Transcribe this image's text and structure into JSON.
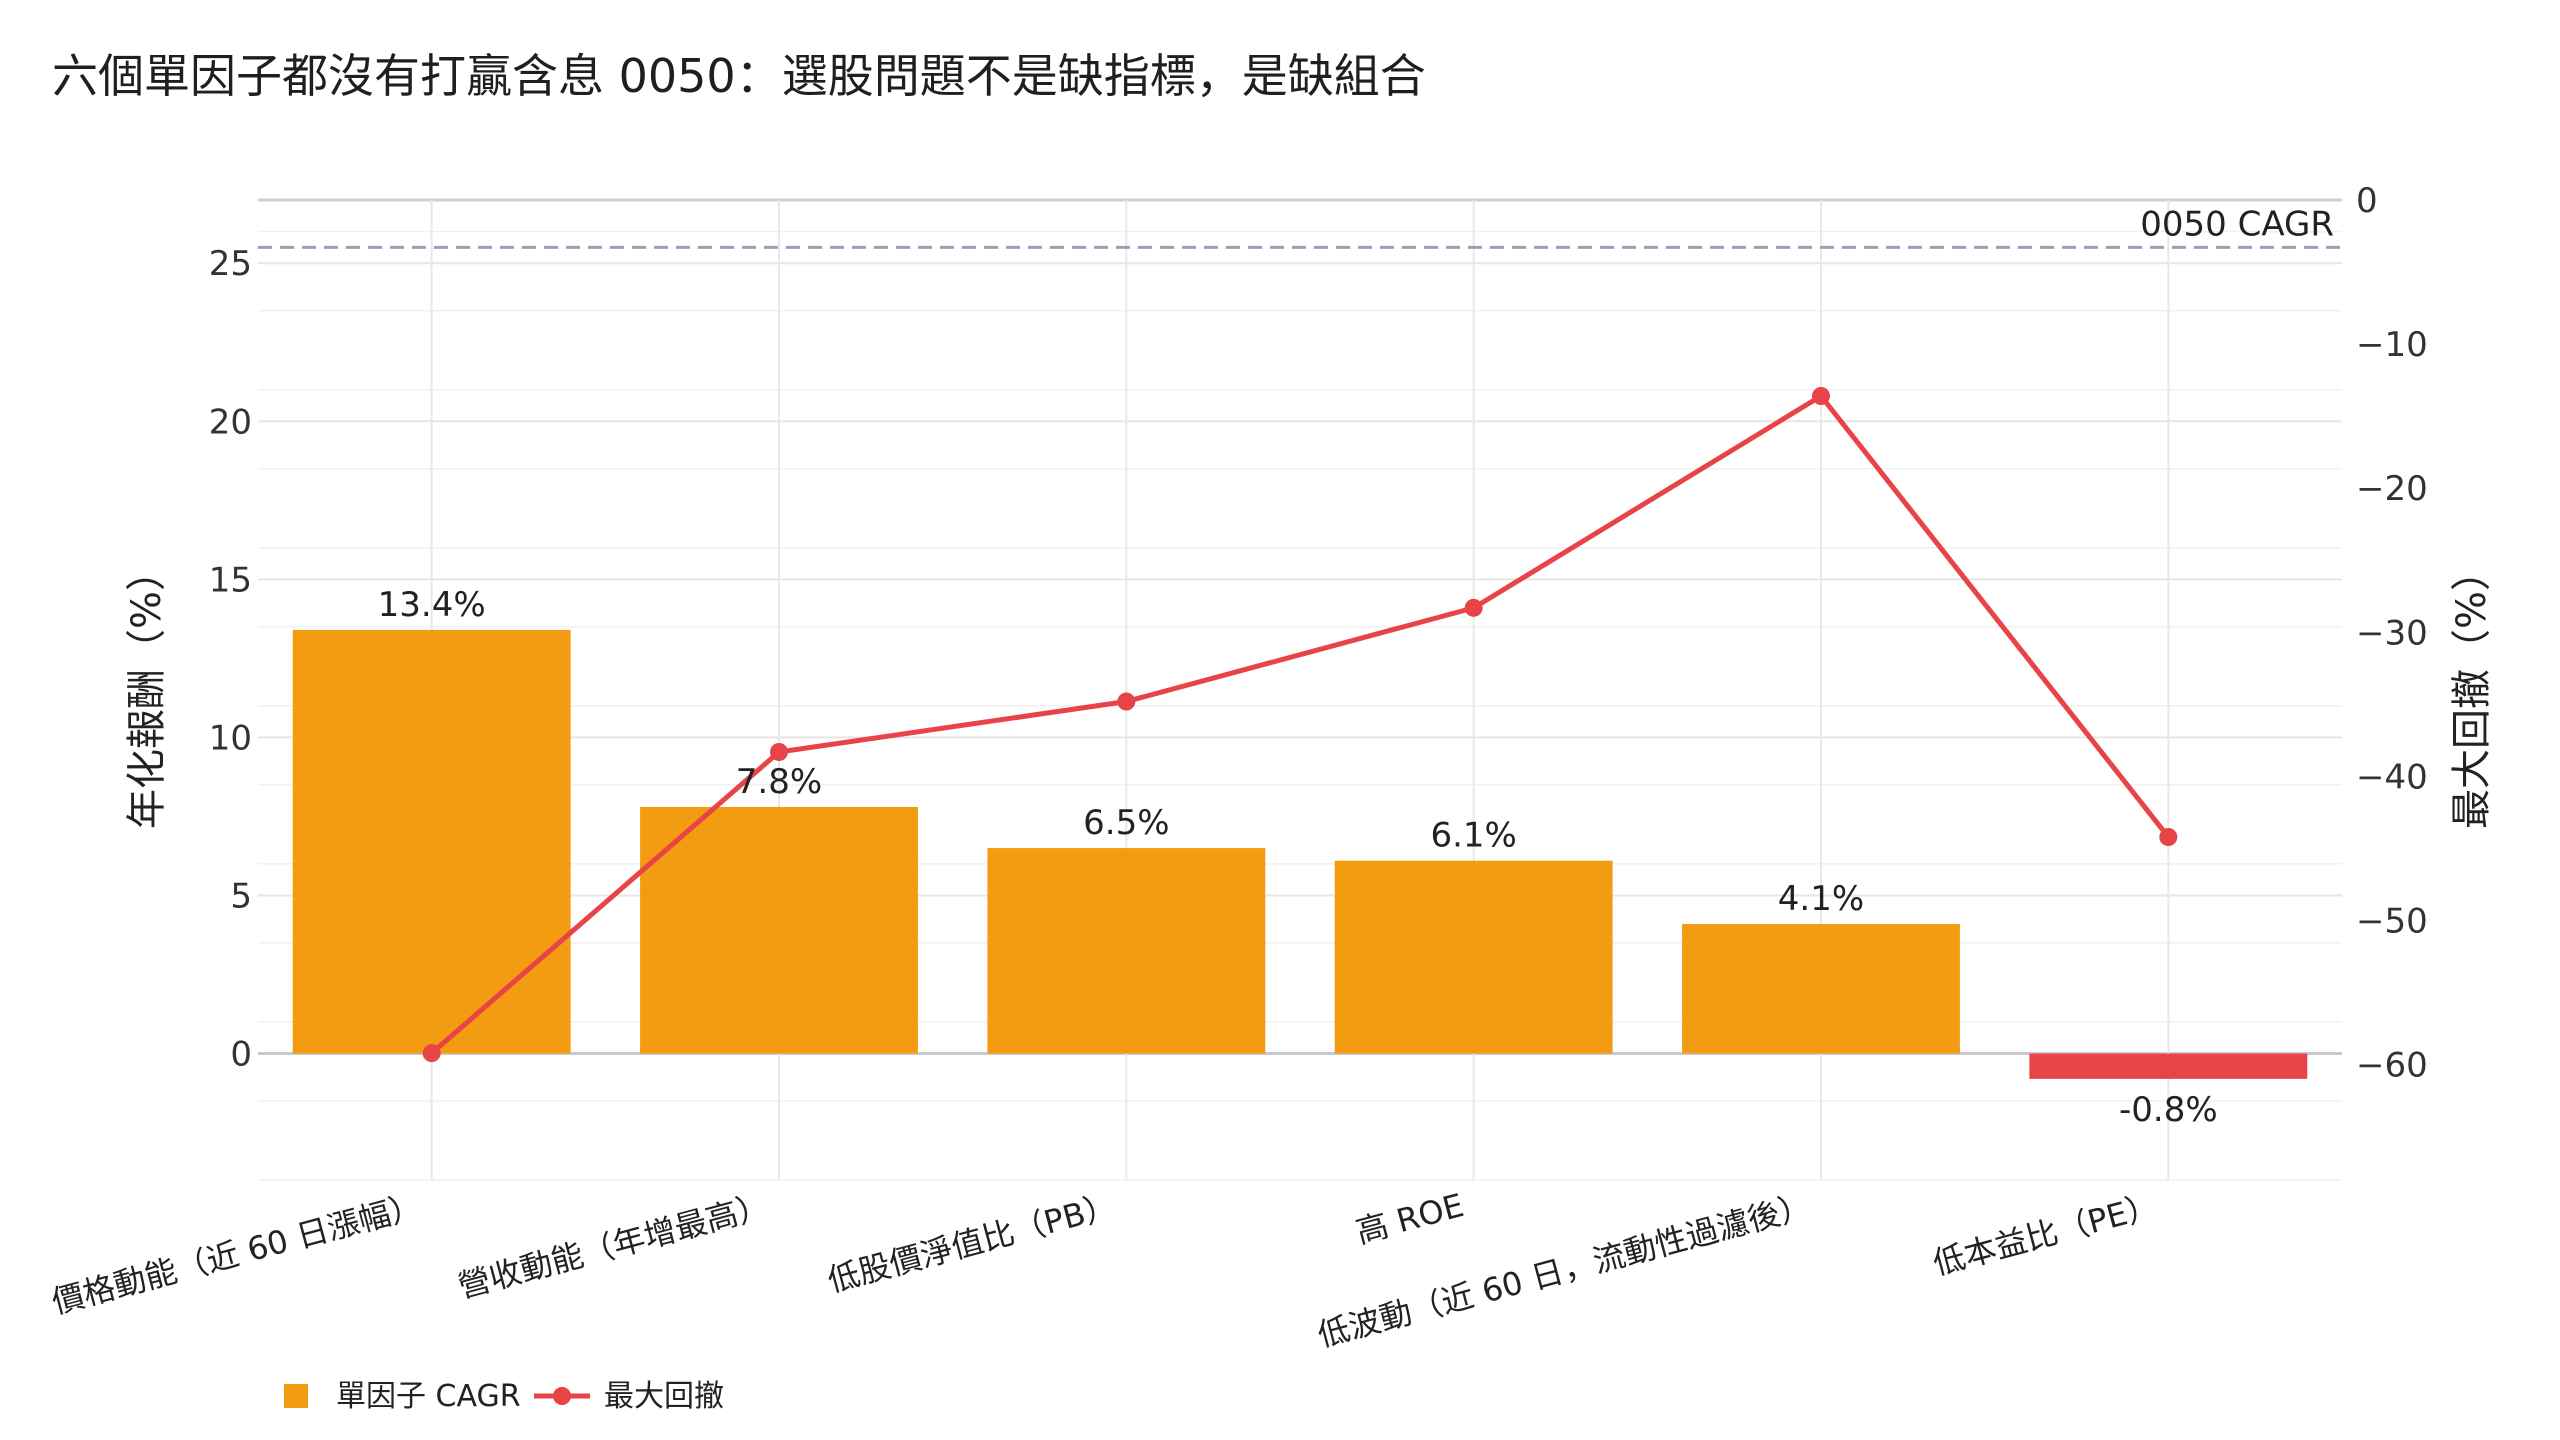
{
  "title": "六個單因子都沒有打贏含息 0050：選股問題不是缺指標，是缺組合",
  "chart_data": {
    "type": "bar",
    "categories": [
      "價格動能（近 60 日漲幅）",
      "營收動能（年增最高）",
      "低股價淨值比（PB）",
      "高 ROE",
      "低波動（近 60 日，流動性過濾後）",
      "低本益比（PE）"
    ],
    "series": [
      {
        "name": "單因子 CAGR",
        "axis": "left",
        "type": "bar",
        "values": [
          13.4,
          7.8,
          6.5,
          6.1,
          4.1,
          -0.8
        ],
        "labels": [
          "13.4%",
          "7.8%",
          "6.5%",
          "6.1%",
          "4.1%",
          "-0.8%"
        ],
        "color": "#f39c12",
        "negative_color": "#e84346"
      },
      {
        "name": "最大回撤",
        "axis": "right",
        "type": "line",
        "values": [
          -59.2,
          -38.3,
          -34.8,
          -28.3,
          -13.6,
          -44.2
        ],
        "color": "#e84346"
      }
    ],
    "reference_line": {
      "label": "0050 CAGR",
      "value": 25.5,
      "axis": "left",
      "style": "dashed",
      "color": "#9aa0b4"
    },
    "left_axis": {
      "label": "年化報酬（%）",
      "ylim": [
        -4,
        27
      ],
      "ticks": [
        0,
        5,
        10,
        15,
        20,
        25
      ]
    },
    "right_axis": {
      "label": "最大回撤（%）",
      "ylim": [
        -68,
        0
      ],
      "ticks": [
        0,
        -10,
        -20,
        -30,
        -40,
        -50,
        -60
      ]
    },
    "grid": true,
    "legend": {
      "position": "bottom-left",
      "items": [
        "單因子 CAGR",
        "最大回撤"
      ]
    }
  }
}
